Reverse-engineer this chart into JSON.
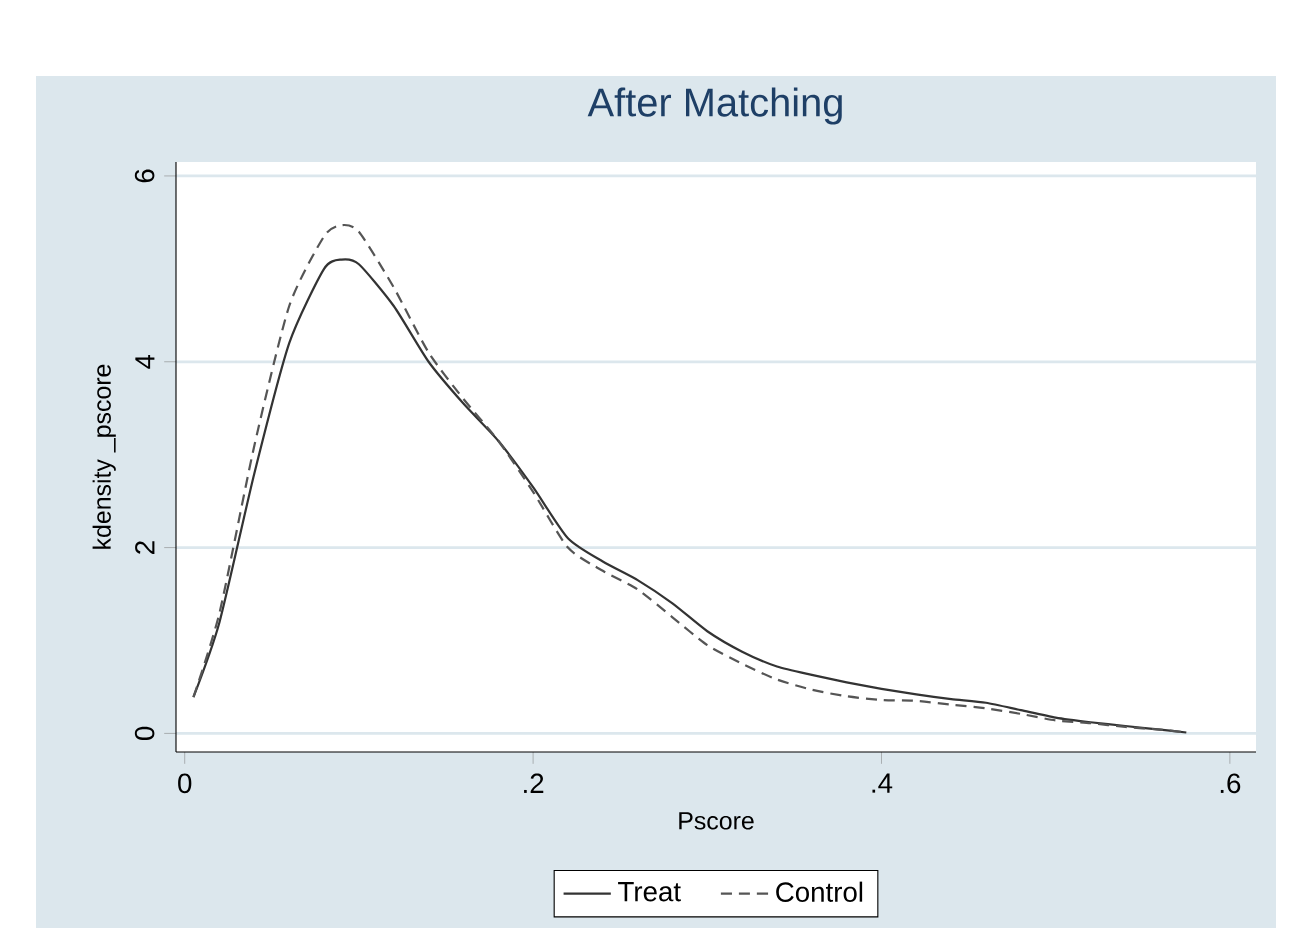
{
  "chart_data": {
    "type": "line",
    "title": "After Matching",
    "xlabel": "Pscore",
    "ylabel": "kdensity _pscore",
    "xlim": [
      -0.005,
      0.615
    ],
    "ylim": [
      -0.2,
      6.15
    ],
    "xticks": [
      {
        "value": 0,
        "label": "0"
      },
      {
        "value": 0.2,
        "label": ".2"
      },
      {
        "value": 0.4,
        "label": ".4"
      },
      {
        "value": 0.6,
        "label": ".6"
      }
    ],
    "yticks": [
      0,
      2,
      4,
      6
    ],
    "grid": "y",
    "legend": "bottom",
    "series": [
      {
        "name": "Treat",
        "color": "#333333",
        "line_style": "solid",
        "x": [
          0.005,
          0.02,
          0.04,
          0.06,
          0.08,
          0.09,
          0.1,
          0.12,
          0.14,
          0.16,
          0.18,
          0.2,
          0.22,
          0.24,
          0.26,
          0.28,
          0.3,
          0.32,
          0.34,
          0.36,
          0.38,
          0.4,
          0.42,
          0.44,
          0.46,
          0.48,
          0.5,
          0.52,
          0.54,
          0.56,
          0.575
        ],
        "values": [
          0.39,
          1.2,
          2.8,
          4.2,
          5.0,
          5.1,
          5.05,
          4.6,
          4.0,
          3.55,
          3.15,
          2.65,
          2.1,
          1.85,
          1.65,
          1.4,
          1.1,
          0.88,
          0.72,
          0.63,
          0.55,
          0.48,
          0.42,
          0.37,
          0.33,
          0.25,
          0.17,
          0.12,
          0.08,
          0.04,
          0.01
        ]
      },
      {
        "name": "Control",
        "color": "#555555",
        "line_style": "dashed",
        "x": [
          0.005,
          0.02,
          0.04,
          0.06,
          0.08,
          0.09,
          0.1,
          0.12,
          0.14,
          0.16,
          0.18,
          0.2,
          0.22,
          0.24,
          0.26,
          0.28,
          0.3,
          0.32,
          0.34,
          0.36,
          0.38,
          0.4,
          0.42,
          0.44,
          0.46,
          0.48,
          0.5,
          0.52,
          0.54,
          0.56,
          0.575
        ],
        "values": [
          0.39,
          1.3,
          3.1,
          4.6,
          5.35,
          5.47,
          5.4,
          4.8,
          4.1,
          3.6,
          3.15,
          2.6,
          2.0,
          1.75,
          1.55,
          1.25,
          0.95,
          0.75,
          0.58,
          0.47,
          0.4,
          0.36,
          0.35,
          0.31,
          0.27,
          0.21,
          0.14,
          0.11,
          0.07,
          0.04,
          0.01
        ]
      }
    ]
  }
}
